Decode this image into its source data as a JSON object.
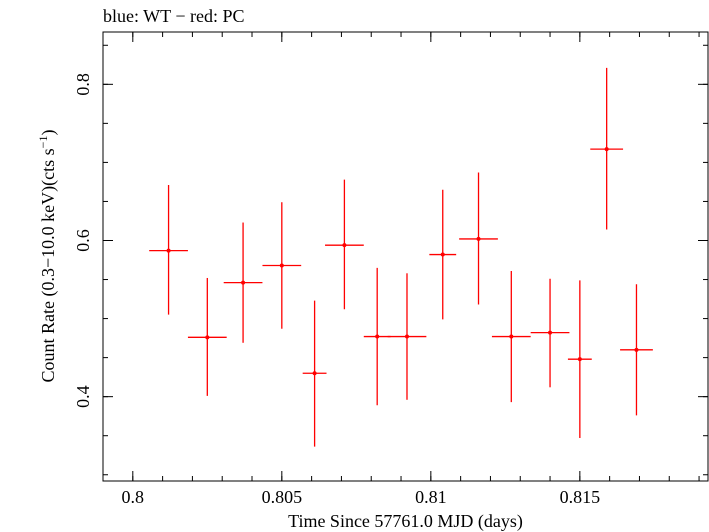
{
  "chart_data": {
    "type": "scatter",
    "title": "blue: WT − red: PC",
    "xlabel": "Time Since 57761.0 MJD (days)",
    "ylabel_main": "Count Rate (0.3−10.0 keV)(cts s",
    "ylabel_sup": "−1",
    "ylabel_end": ")",
    "xlim": [
      0.799,
      0.8193
    ],
    "ylim": [
      0.292,
      0.867
    ],
    "x_ticks": [
      0.8,
      0.805,
      0.81,
      0.815
    ],
    "x_tick_labels": [
      "0.8",
      "0.805",
      "0.81",
      "0.815"
    ],
    "x_minor_step": 0.001,
    "y_ticks": [
      0.4,
      0.6,
      0.8
    ],
    "y_tick_labels": [
      "0.4",
      "0.6",
      "0.8"
    ],
    "y_minor_step": 0.05,
    "grid": false,
    "series": [
      {
        "color": "#ff0000",
        "points": [
          {
            "x": 0.8012,
            "xerr": 0.00065,
            "y": 0.587,
            "ylo": 0.505,
            "yhi": 0.671
          },
          {
            "x": 0.8025,
            "xerr": 0.00065,
            "y": 0.476,
            "ylo": 0.401,
            "yhi": 0.552
          },
          {
            "x": 0.8037,
            "xerr": 0.00065,
            "y": 0.546,
            "ylo": 0.469,
            "yhi": 0.623
          },
          {
            "x": 0.805,
            "xerr": 0.00065,
            "y": 0.568,
            "ylo": 0.487,
            "yhi": 0.649
          },
          {
            "x": 0.8061,
            "xerr": 0.0004,
            "y": 0.43,
            "ylo": 0.336,
            "yhi": 0.523
          },
          {
            "x": 0.8071,
            "xerr": 0.00065,
            "y": 0.594,
            "ylo": 0.512,
            "yhi": 0.678
          },
          {
            "x": 0.8082,
            "xerr": 0.00045,
            "y": 0.477,
            "ylo": 0.389,
            "yhi": 0.565
          },
          {
            "x": 0.8092,
            "xerr": 0.00065,
            "y": 0.477,
            "ylo": 0.396,
            "yhi": 0.558
          },
          {
            "x": 0.8104,
            "xerr": 0.00045,
            "y": 0.582,
            "ylo": 0.499,
            "yhi": 0.665
          },
          {
            "x": 0.8116,
            "xerr": 0.00065,
            "y": 0.602,
            "ylo": 0.518,
            "yhi": 0.687
          },
          {
            "x": 0.8127,
            "xerr": 0.00065,
            "y": 0.477,
            "ylo": 0.393,
            "yhi": 0.561
          },
          {
            "x": 0.814,
            "xerr": 0.00065,
            "y": 0.482,
            "ylo": 0.412,
            "yhi": 0.551
          },
          {
            "x": 0.815,
            "xerr": 0.0004,
            "y": 0.448,
            "ylo": 0.347,
            "yhi": 0.549
          },
          {
            "x": 0.8159,
            "xerr": 0.00055,
            "y": 0.717,
            "ylo": 0.614,
            "yhi": 0.821
          },
          {
            "x": 0.8169,
            "xerr": 0.00055,
            "y": 0.46,
            "ylo": 0.376,
            "yhi": 0.544
          }
        ]
      }
    ]
  }
}
